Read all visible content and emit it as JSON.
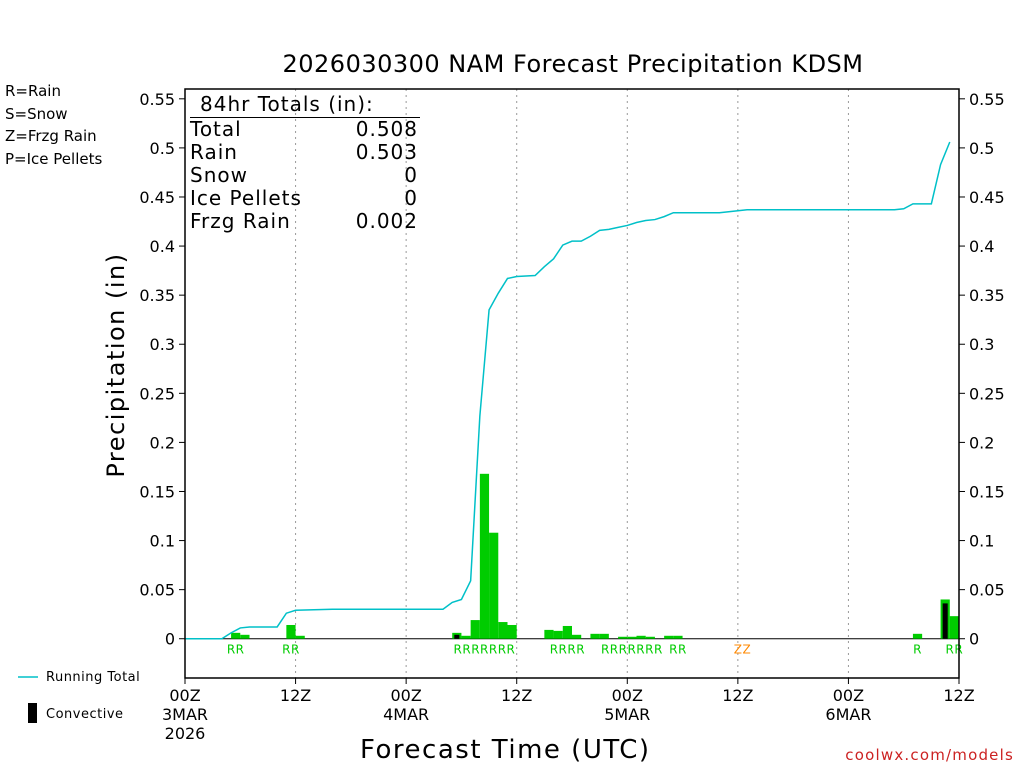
{
  "chart_data": {
    "type": "bar",
    "title": "2026030300 NAM Forecast Precipitation KDSM",
    "xlabel": "Forecast Time (UTC)",
    "ylabel": "Precipitation (in)",
    "ylim": [
      -0.04,
      0.56
    ],
    "xlim": [
      0,
      84
    ],
    "y_ticks": [
      "0",
      "0.05",
      "0.1",
      "0.15",
      "0.2",
      "0.25",
      "0.3",
      "0.35",
      "0.4",
      "0.45",
      "0.5",
      "0.55"
    ],
    "x_ticks": [
      {
        "hour": 0,
        "label": "00Z",
        "date": "3MAR",
        "year": "2026"
      },
      {
        "hour": 12,
        "label": "12Z",
        "date": "",
        "year": ""
      },
      {
        "hour": 24,
        "label": "00Z",
        "date": "4MAR",
        "year": ""
      },
      {
        "hour": 36,
        "label": "12Z",
        "date": "",
        "year": ""
      },
      {
        "hour": 48,
        "label": "00Z",
        "date": "5MAR",
        "year": ""
      },
      {
        "hour": 60,
        "label": "12Z",
        "date": "",
        "year": ""
      },
      {
        "hour": 72,
        "label": "00Z",
        "date": "6MAR",
        "year": ""
      },
      {
        "hour": 84,
        "label": "12Z",
        "date": "",
        "year": ""
      }
    ],
    "grid_hours": [
      12,
      24,
      36,
      48,
      60,
      72
    ],
    "colors": {
      "rain": "#00cc00",
      "snow": "#3333ff",
      "frzg_rain": "#ff8800",
      "ice_pellets": "#ff1493",
      "running_total": "#00c0c8",
      "convective": "#000000"
    },
    "precip_bars": [
      {
        "hour": 5,
        "rain": 0.006,
        "type": "R"
      },
      {
        "hour": 6,
        "rain": 0.004,
        "type": "R"
      },
      {
        "hour": 11,
        "rain": 0.014,
        "type": "R"
      },
      {
        "hour": 12,
        "rain": 0.003,
        "type": "R"
      },
      {
        "hour": 29,
        "rain": 0.006,
        "convective": 0.004,
        "type": "R"
      },
      {
        "hour": 30,
        "rain": 0.003,
        "type": "R"
      },
      {
        "hour": 31,
        "rain": 0.019,
        "type": "R"
      },
      {
        "hour": 32,
        "rain": 0.168,
        "type": "R"
      },
      {
        "hour": 33,
        "rain": 0.108,
        "type": "R"
      },
      {
        "hour": 34,
        "rain": 0.017,
        "type": "R"
      },
      {
        "hour": 35,
        "rain": 0.014,
        "type": "R"
      },
      {
        "hour": 39,
        "rain": 0.009,
        "type": "R"
      },
      {
        "hour": 40,
        "rain": 0.008,
        "type": "R"
      },
      {
        "hour": 41,
        "rain": 0.013,
        "type": "R"
      },
      {
        "hour": 42,
        "rain": 0.004,
        "type": "R"
      },
      {
        "hour": 44,
        "rain": 0.005,
        "type": "R"
      },
      {
        "hour": 45,
        "rain": 0.005,
        "type": "R"
      },
      {
        "hour": 47,
        "rain": 0.002,
        "type": "R"
      },
      {
        "hour": 48,
        "rain": 0.002,
        "type": "R"
      },
      {
        "hour": 49,
        "rain": 0.003,
        "type": "R"
      },
      {
        "hour": 50,
        "rain": 0.002,
        "type": "R"
      },
      {
        "hour": 52,
        "rain": 0.003,
        "type": "R"
      },
      {
        "hour": 53,
        "rain": 0.003,
        "type": "R"
      },
      {
        "hour": 79,
        "rain": 0.005,
        "type": "R"
      },
      {
        "hour": 82,
        "rain": 0.04,
        "convective": 0.036,
        "type": "R"
      },
      {
        "hour": 83,
        "rain": 0.023,
        "type": "R"
      }
    ],
    "type_markers": [
      {
        "hour": 5.5,
        "text": "RR",
        "kind": "rain"
      },
      {
        "hour": 11.5,
        "text": "RR",
        "kind": "rain"
      },
      {
        "hour": 32.5,
        "text": "RRRRRRR",
        "kind": "rain"
      },
      {
        "hour": 41.5,
        "text": "RRRR",
        "kind": "rain"
      },
      {
        "hour": 48.5,
        "text": "RRRRRRR",
        "kind": "rain"
      },
      {
        "hour": 53.5,
        "text": "RR",
        "kind": "rain"
      },
      {
        "hour": 60.5,
        "text": "ZZ",
        "kind": "frzg_rain"
      },
      {
        "hour": 79.5,
        "text": "R",
        "kind": "rain"
      },
      {
        "hour": 83.5,
        "text": "RR",
        "kind": "rain"
      }
    ],
    "running_total": [
      {
        "x": 0,
        "y": 0
      },
      {
        "x": 4,
        "y": 0
      },
      {
        "x": 5,
        "y": 0.006
      },
      {
        "x": 6,
        "y": 0.011
      },
      {
        "x": 7,
        "y": 0.012
      },
      {
        "x": 10,
        "y": 0.012
      },
      {
        "x": 11,
        "y": 0.026
      },
      {
        "x": 12,
        "y": 0.029
      },
      {
        "x": 16,
        "y": 0.03
      },
      {
        "x": 28,
        "y": 0.03
      },
      {
        "x": 29,
        "y": 0.037
      },
      {
        "x": 30,
        "y": 0.04
      },
      {
        "x": 31,
        "y": 0.059
      },
      {
        "x": 32,
        "y": 0.227
      },
      {
        "x": 33,
        "y": 0.335
      },
      {
        "x": 34,
        "y": 0.352
      },
      {
        "x": 35,
        "y": 0.367
      },
      {
        "x": 36,
        "y": 0.369
      },
      {
        "x": 38,
        "y": 0.37
      },
      {
        "x": 39,
        "y": 0.379
      },
      {
        "x": 40,
        "y": 0.387
      },
      {
        "x": 41,
        "y": 0.401
      },
      {
        "x": 42,
        "y": 0.405
      },
      {
        "x": 43,
        "y": 0.405
      },
      {
        "x": 44,
        "y": 0.41
      },
      {
        "x": 45,
        "y": 0.416
      },
      {
        "x": 46,
        "y": 0.417
      },
      {
        "x": 47,
        "y": 0.419
      },
      {
        "x": 48,
        "y": 0.421
      },
      {
        "x": 49,
        "y": 0.424
      },
      {
        "x": 50,
        "y": 0.426
      },
      {
        "x": 51,
        "y": 0.427
      },
      {
        "x": 52,
        "y": 0.43
      },
      {
        "x": 53,
        "y": 0.434
      },
      {
        "x": 54,
        "y": 0.434
      },
      {
        "x": 58,
        "y": 0.434
      },
      {
        "x": 59,
        "y": 0.435
      },
      {
        "x": 60,
        "y": 0.436
      },
      {
        "x": 61,
        "y": 0.437
      },
      {
        "x": 77,
        "y": 0.437
      },
      {
        "x": 78,
        "y": 0.438
      },
      {
        "x": 79,
        "y": 0.443
      },
      {
        "x": 80,
        "y": 0.443
      },
      {
        "x": 81,
        "y": 0.443
      },
      {
        "x": 82,
        "y": 0.483
      },
      {
        "x": 83,
        "y": 0.506
      }
    ],
    "totals": {
      "title": "84hr Totals (in):",
      "rows": [
        {
          "label": "Total",
          "value": "0.508"
        },
        {
          "label": "Rain",
          "value": "0.503"
        },
        {
          "label": "Snow",
          "value": "0"
        },
        {
          "label": "Ice Pellets",
          "value": "0"
        },
        {
          "label": "Frzg Rain",
          "value": "0.002"
        }
      ]
    },
    "type_legend": [
      {
        "text": "R=Rain",
        "color": "#00cc00"
      },
      {
        "text": "S=Snow",
        "color": "#3333ff"
      },
      {
        "text": "Z=Frzg Rain",
        "color": "#ff8800"
      },
      {
        "text": "P=Ice Pellets",
        "color": "#ff1493"
      }
    ],
    "series_legend": {
      "running_total": "Running Total",
      "convective": "Convective"
    },
    "credit": "coolwx.com/models"
  }
}
